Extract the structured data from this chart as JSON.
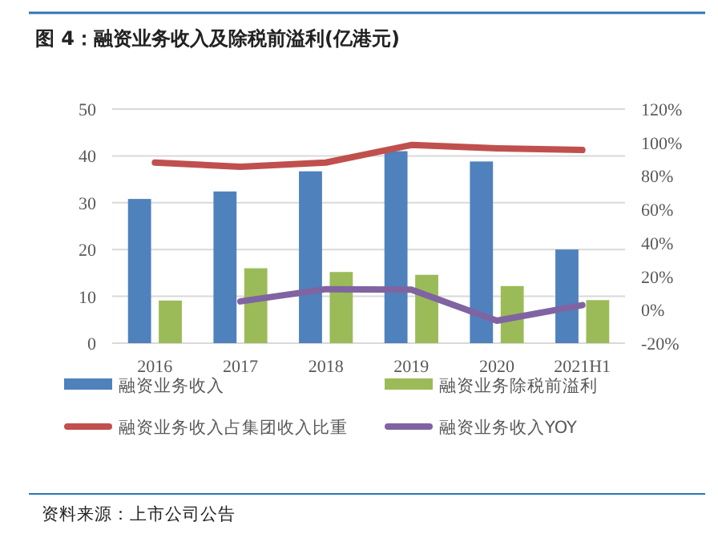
{
  "chart_data": {
    "type": "bar",
    "title": "图 4：融资业务收入及除税前溢利(亿港元)",
    "categories": [
      "2016",
      "2017",
      "2018",
      "2019",
      "2020",
      "2021H1"
    ],
    "series": [
      {
        "name": "融资业务收入",
        "color": "#4f81bd",
        "values": [
          30.8,
          32.4,
          36.7,
          41,
          38.8,
          20
        ]
      },
      {
        "name": "融资业务除税前溢利",
        "color": "#9bbb59",
        "values": [
          9.1,
          16,
          15.2,
          14.6,
          12.2,
          9.2
        ]
      },
      {
        "name": "融资业务收入占集团收入比重",
        "type": "line",
        "axis": "y2",
        "color": "#c0504d",
        "values": [
          88,
          85.5,
          88,
          98.5,
          96.5,
          95.5
        ]
      },
      {
        "name": "融资业务收入YOY",
        "type": "line",
        "axis": "y2",
        "color": "#8064a2",
        "values": [
          null,
          5,
          12.3,
          12,
          -6.6,
          2.7
        ]
      }
    ],
    "ylim": [
      0,
      50
    ],
    "yticks": [
      0,
      10,
      20,
      30,
      40,
      50
    ],
    "y2lim": [
      -20,
      120
    ],
    "y2ticks": [
      {
        "value": -20,
        "label": "-20%"
      },
      {
        "value": 0,
        "label": "0%"
      },
      {
        "value": 20,
        "label": "20%"
      },
      {
        "value": 40,
        "label": "40%"
      },
      {
        "value": 60,
        "label": "60%"
      },
      {
        "value": 80,
        "label": "80%"
      },
      {
        "value": 100,
        "label": "100%"
      },
      {
        "value": 120,
        "label": "120%"
      }
    ],
    "grid": "y",
    "legend": "bottom",
    "annotations": [
      "资料来源：上市公司公告"
    ]
  }
}
